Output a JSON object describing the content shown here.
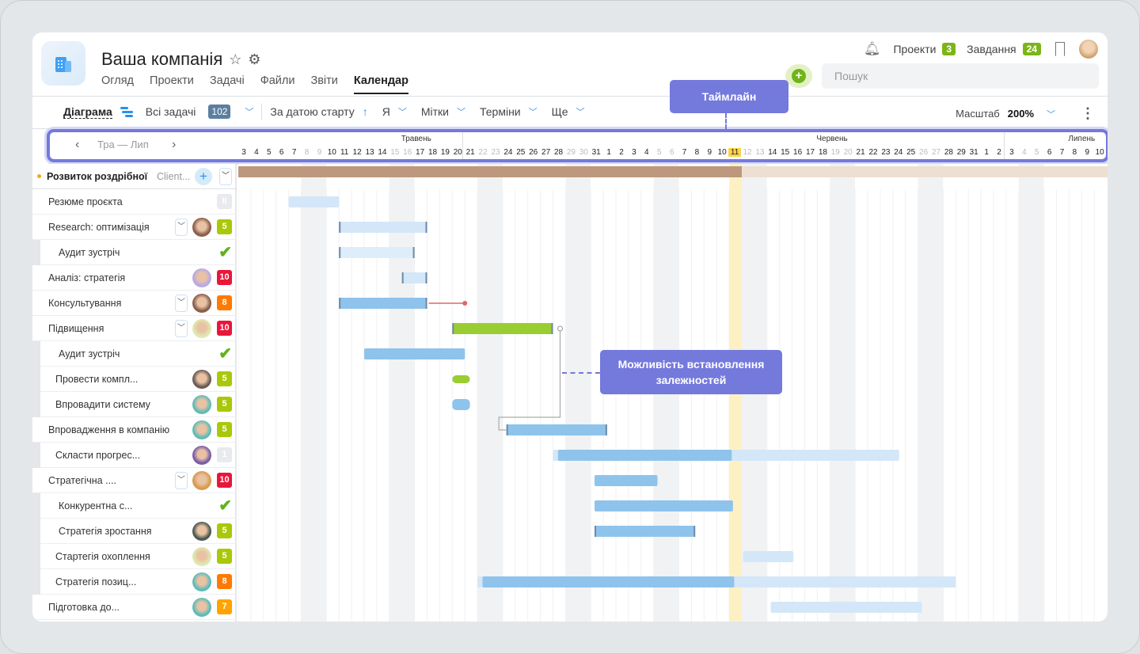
{
  "header": {
    "company": "Ваша компанія",
    "tabs": [
      "Огляд",
      "Проекти",
      "Задачі",
      "Файли",
      "Звіти",
      "Календар"
    ],
    "active_tab": "Календар",
    "projects_label": "Проекти",
    "projects_count": "3",
    "tasks_label": "Завдання",
    "tasks_count": "24",
    "search_placeholder": "Пошук"
  },
  "toolbar": {
    "view": "Діаграма",
    "filter": "Всі задачі",
    "filter_count": "102",
    "sort": "За датою старту",
    "owner": "Я",
    "tags": "Мітки",
    "deadlines": "Терміни",
    "more": "Ще",
    "scale_label": "Масштаб",
    "scale_value": "200%"
  },
  "timeline": {
    "range": "Тра — Лип",
    "months": [
      "Травень",
      "Червень",
      "Липень"
    ],
    "today": "11",
    "days": [
      [
        "3",
        0
      ],
      [
        "4",
        0
      ],
      [
        "5",
        0
      ],
      [
        "6",
        0
      ],
      [
        "7",
        0
      ],
      [
        "8",
        1
      ],
      [
        "9",
        1
      ],
      [
        "10",
        0
      ],
      [
        "11",
        0
      ],
      [
        "12",
        0
      ],
      [
        "13",
        0
      ],
      [
        "14",
        0
      ],
      [
        "15",
        1
      ],
      [
        "16",
        1
      ],
      [
        "17",
        0
      ],
      [
        "18",
        0
      ],
      [
        "19",
        0
      ],
      [
        "20",
        0
      ],
      [
        "21",
        0
      ],
      [
        "22",
        1
      ],
      [
        "23",
        1
      ],
      [
        "24",
        0
      ],
      [
        "25",
        0
      ],
      [
        "26",
        0
      ],
      [
        "27",
        0
      ],
      [
        "28",
        0
      ],
      [
        "29",
        1
      ],
      [
        "30",
        1
      ],
      [
        "31",
        0
      ],
      [
        "1",
        0
      ],
      [
        "2",
        0
      ],
      [
        "3",
        0
      ],
      [
        "4",
        0
      ],
      [
        "5",
        1
      ],
      [
        "6",
        1
      ],
      [
        "7",
        0
      ],
      [
        "8",
        0
      ],
      [
        "9",
        0
      ],
      [
        "10",
        0
      ],
      [
        "11",
        0
      ],
      [
        "12",
        1
      ],
      [
        "13",
        1
      ],
      [
        "14",
        0
      ],
      [
        "15",
        0
      ],
      [
        "16",
        0
      ],
      [
        "17",
        0
      ],
      [
        "18",
        0
      ],
      [
        "19",
        1
      ],
      [
        "20",
        1
      ],
      [
        "21",
        0
      ],
      [
        "22",
        0
      ],
      [
        "23",
        0
      ],
      [
        "24",
        0
      ],
      [
        "25",
        0
      ],
      [
        "26",
        1
      ],
      [
        "27",
        1
      ],
      [
        "28",
        0
      ],
      [
        "29",
        0
      ],
      [
        "31",
        0
      ],
      [
        "1",
        0
      ],
      [
        "2",
        0
      ],
      [
        "3",
        0
      ],
      [
        "4",
        1
      ],
      [
        "5",
        1
      ],
      [
        "6",
        0
      ],
      [
        "7",
        0
      ],
      [
        "8",
        0
      ],
      [
        "9",
        0
      ],
      [
        "10",
        0
      ]
    ]
  },
  "group": {
    "name": "Розвиток роздрібної",
    "client": "Client...",
    "color": "#f5a623"
  },
  "rows": [
    {
      "name": "Резюме проєкта",
      "sub": 0,
      "badge": "II",
      "badge_color": "#e8eaed",
      "bar": [
        4,
        8
      ],
      "style": "light"
    },
    {
      "name": "Research: оптимізація",
      "sub": 0,
      "dd": 1,
      "avatar": "#8b5e4b",
      "badge": "5",
      "badge_color": "#a9c80a",
      "bar": [
        8,
        15
      ],
      "style": "light",
      "ends": 1
    },
    {
      "name": "Аудит зустріч",
      "sub": 2,
      "check": 1,
      "bar": [
        8,
        14
      ],
      "style": "lighter",
      "ends": 1
    },
    {
      "name": "Аналіз: стратегія",
      "sub": 0,
      "avatar": "#b9a9e6",
      "badge": "10",
      "badge_color": "#e8173a",
      "bar": [
        13,
        15
      ],
      "style": "light",
      "ends": 1
    },
    {
      "name": "Консультування",
      "sub": 0,
      "dd": 1,
      "avatar": "#8b5e4b",
      "badge": "8",
      "badge_color": "#ff7a00",
      "bar": [
        8,
        15
      ],
      "style": "mid",
      "ends": 1,
      "dep": 18
    },
    {
      "name": "Підвищення",
      "sub": 0,
      "dd": 1,
      "avatar": "#dfe8b0",
      "badge": "10",
      "badge_color": "#e8173a",
      "bar": [
        17,
        25
      ],
      "style": "green",
      "ends": 1
    },
    {
      "name": "Аудит зустріч",
      "sub": 2,
      "check": 1,
      "bar": [
        10,
        18
      ],
      "style": "mid"
    },
    {
      "name": "Провести компл...",
      "sub": 1,
      "avatar": "#6b5a55",
      "badge": "5",
      "badge_color": "#a9c80a",
      "bar": [
        17,
        18.4
      ],
      "style": "greenpill"
    },
    {
      "name": "Впровадити систему",
      "sub": 1,
      "avatar": "#5fbcb8",
      "badge": "5",
      "badge_color": "#a9c80a",
      "bar": [
        17,
        18.4
      ],
      "style": "bluepill"
    },
    {
      "name": "Впровадження в компанію",
      "sub": 0,
      "avatar": "#5fbcb8",
      "badge": "5",
      "badge_color": "#a9c80a",
      "bar": [
        21.3,
        29.3
      ],
      "style": "mid",
      "ends": 1
    },
    {
      "name": "Скласти прогрес...",
      "sub": 1,
      "avatar": "#7a5ea8",
      "badge": "1",
      "badge_color": "#e8eaed",
      "bar": [
        25,
        52.5
      ],
      "progress": [
        25.4,
        39.2
      ],
      "style": "light"
    },
    {
      "name": "Стратегічна ....",
      "sub": 0,
      "dd": 1,
      "avatar": "#d99a4e",
      "badge": "10",
      "badge_color": "#e8173a",
      "bar": [
        28.3,
        33.3
      ],
      "style": "mid"
    },
    {
      "name": "Конкурентна с...",
      "sub": 2,
      "check": 1,
      "bar": [
        28.3,
        39.3
      ],
      "style": "mid"
    },
    {
      "name": "Стратегія зростання",
      "sub": 2,
      "avatar": "#4a5a50",
      "badge": "5",
      "badge_color": "#a9c80a",
      "bar": [
        28.3,
        36.3
      ],
      "style": "mid",
      "ends": 1
    },
    {
      "name": "Стартегія охоплення",
      "sub": 1,
      "avatar": "#dfe8b0",
      "badge": "5",
      "badge_color": "#a9c80a",
      "bar": [
        40.1,
        44.1
      ],
      "style": "light"
    },
    {
      "name": "Стратегія позиц...",
      "sub": 1,
      "avatar": "#5fbcb8",
      "badge": "8",
      "badge_color": "#ff7a00",
      "bar": [
        19,
        57
      ],
      "progress": [
        19.4,
        39.4
      ],
      "style": "light"
    },
    {
      "name": "Підготовка до...",
      "sub": 0,
      "avatar": "#5fbcb8",
      "badge": "7",
      "badge_color": "#ffa300",
      "bar": [
        42.3,
        54.3
      ],
      "style": "light"
    }
  ],
  "callouts": {
    "timeline": "Таймлайн",
    "dependencies": "Можливість встановлення залежностей"
  },
  "colors": {
    "accent": "#7479dc",
    "today": "#fcd34d",
    "bar_light": "#d3e7f8",
    "bar_mid": "#8ec3ec",
    "green": "#9acd32"
  }
}
